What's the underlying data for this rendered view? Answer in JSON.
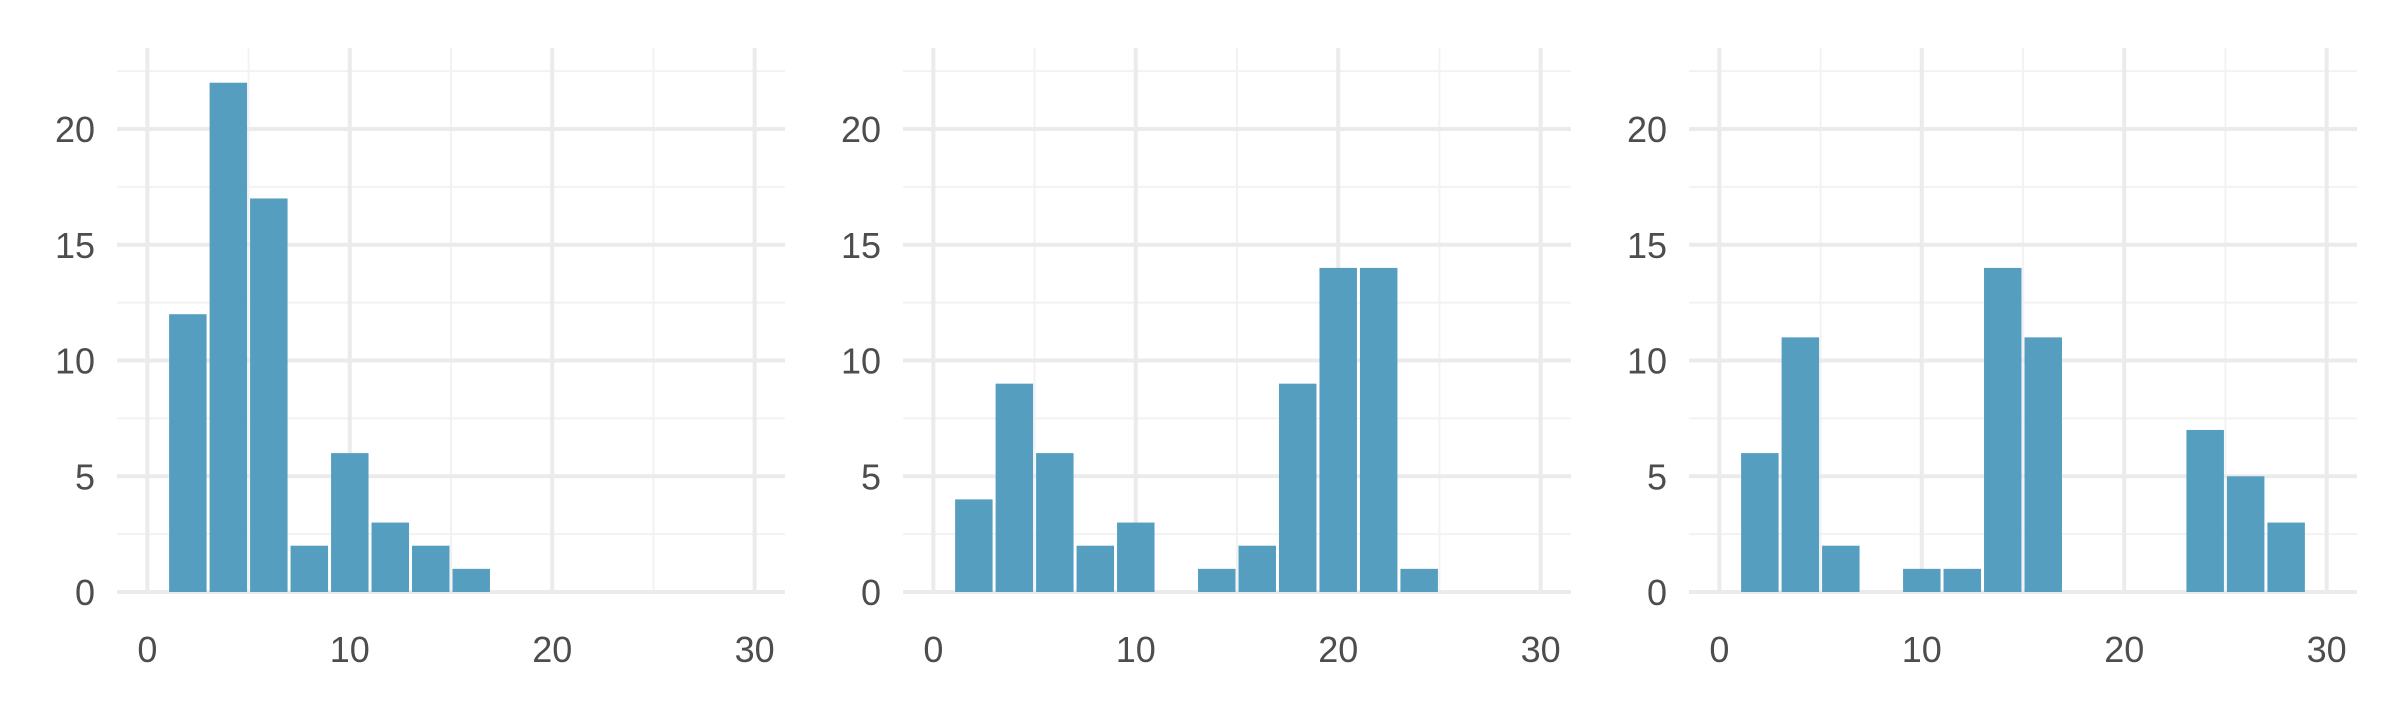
{
  "chart_data": [
    {
      "type": "bar",
      "title": "",
      "xlabel": "",
      "ylabel": "",
      "xlim": [
        -1.5,
        31.5
      ],
      "ylim": [
        0,
        23.5
      ],
      "x_ticks": [
        "0",
        "10",
        "20",
        "30"
      ],
      "y_ticks": [
        "0",
        "5",
        "10",
        "15",
        "20"
      ],
      "bin_width": 2,
      "grid": true,
      "color": "#569ec0",
      "bins": [
        {
          "center": 2,
          "value": 12
        },
        {
          "center": 4,
          "value": 22
        },
        {
          "center": 6,
          "value": 17
        },
        {
          "center": 8,
          "value": 2
        },
        {
          "center": 10,
          "value": 6
        },
        {
          "center": 12,
          "value": 3
        },
        {
          "center": 14,
          "value": 2
        },
        {
          "center": 16,
          "value": 1
        }
      ]
    },
    {
      "type": "bar",
      "title": "",
      "xlabel": "",
      "ylabel": "",
      "xlim": [
        -1.5,
        31.5
      ],
      "ylim": [
        0,
        23.5
      ],
      "x_ticks": [
        "0",
        "10",
        "20",
        "30"
      ],
      "y_ticks": [
        "0",
        "5",
        "10",
        "15",
        "20"
      ],
      "bin_width": 2,
      "grid": true,
      "color": "#569ec0",
      "bins": [
        {
          "center": 2,
          "value": 4
        },
        {
          "center": 4,
          "value": 9
        },
        {
          "center": 6,
          "value": 6
        },
        {
          "center": 8,
          "value": 2
        },
        {
          "center": 10,
          "value": 3
        },
        {
          "center": 14,
          "value": 1
        },
        {
          "center": 16,
          "value": 2
        },
        {
          "center": 18,
          "value": 9
        },
        {
          "center": 20,
          "value": 14
        },
        {
          "center": 22,
          "value": 14
        },
        {
          "center": 24,
          "value": 1
        }
      ]
    },
    {
      "type": "bar",
      "title": "",
      "xlabel": "",
      "ylabel": "",
      "xlim": [
        -1.5,
        31.5
      ],
      "ylim": [
        0,
        23.5
      ],
      "x_ticks": [
        "0",
        "10",
        "20",
        "30"
      ],
      "y_ticks": [
        "0",
        "5",
        "10",
        "15",
        "20"
      ],
      "bin_width": 2,
      "grid": true,
      "color": "#569ec0",
      "bins": [
        {
          "center": 2,
          "value": 6
        },
        {
          "center": 4,
          "value": 11
        },
        {
          "center": 6,
          "value": 2
        },
        {
          "center": 10,
          "value": 1
        },
        {
          "center": 12,
          "value": 1
        },
        {
          "center": 14,
          "value": 14
        },
        {
          "center": 16,
          "value": 11
        },
        {
          "center": 24,
          "value": 7
        },
        {
          "center": 26,
          "value": 5
        },
        {
          "center": 28,
          "value": 3
        }
      ]
    }
  ]
}
